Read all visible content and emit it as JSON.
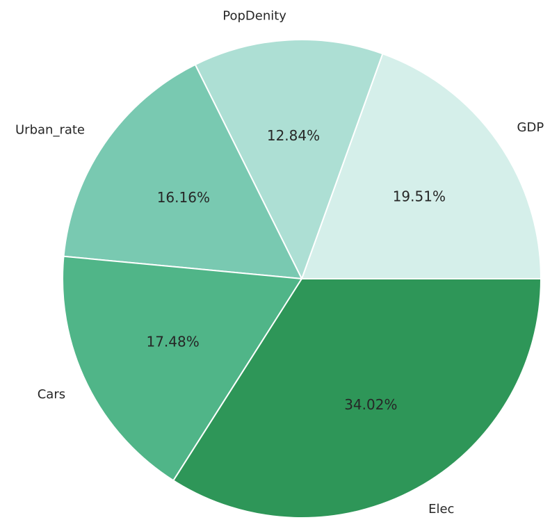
{
  "chart_data": {
    "type": "pie",
    "title": "",
    "start_angle_deg": 0,
    "direction": "counterclockwise",
    "slices": [
      {
        "label": "GDP",
        "value": 19.51,
        "pct_label": "19.51%",
        "color": "#d5efea"
      },
      {
        "label": "PopDenity",
        "value": 12.84,
        "pct_label": "12.84%",
        "color": "#addfd4"
      },
      {
        "label": "Urban_rate",
        "value": 16.16,
        "pct_label": "16.16%",
        "color": "#79c9b1"
      },
      {
        "label": "Cars",
        "value": 17.48,
        "pct_label": "17.48%",
        "color": "#50b588"
      },
      {
        "label": "Elec",
        "value": 34.02,
        "pct_label": "34.02%",
        "color": "#2e9658"
      }
    ]
  }
}
